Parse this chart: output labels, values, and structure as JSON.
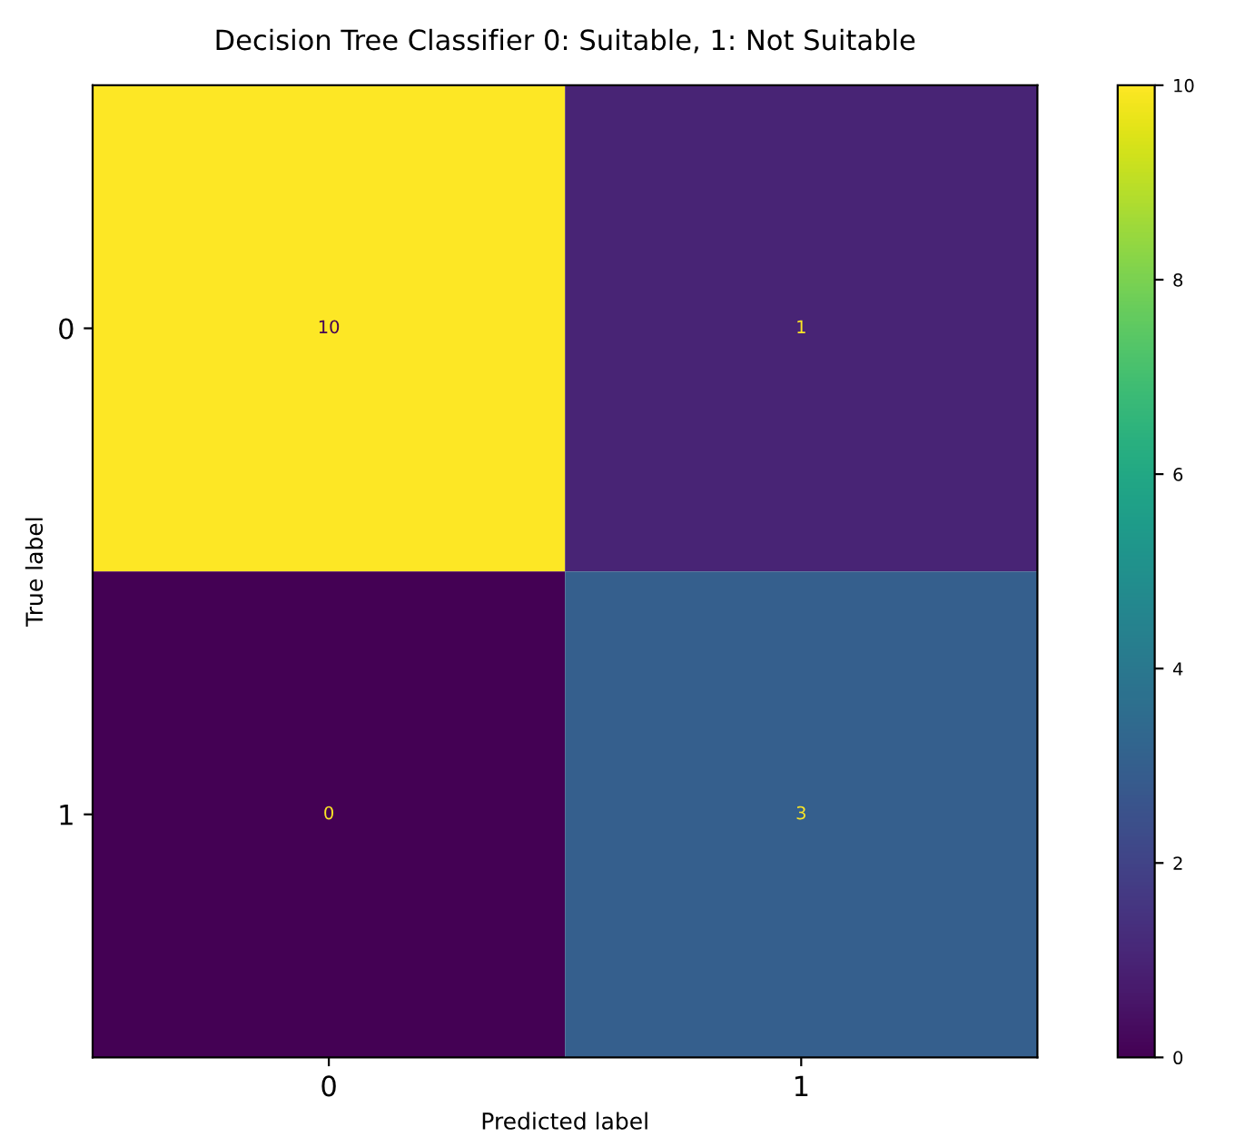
{
  "chart_data": {
    "type": "heatmap",
    "title": "Decision Tree Classifier 0: Suitable, 1: Not Suitable",
    "xlabel": "Predicted label",
    "ylabel": "True label",
    "categories": [
      "0",
      "1"
    ],
    "y_categories": [
      "0",
      "1"
    ],
    "cells": [
      [
        10,
        1
      ],
      [
        0,
        3
      ]
    ],
    "data_labels": true,
    "clim": [
      0,
      10
    ],
    "cticks": [
      0,
      2,
      4,
      6,
      8,
      10
    ]
  }
}
